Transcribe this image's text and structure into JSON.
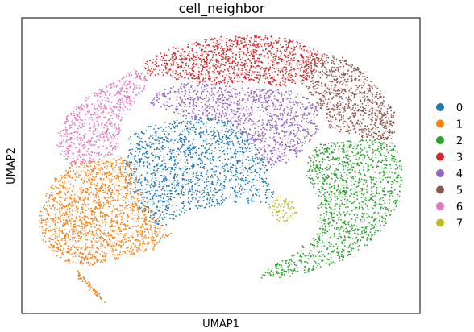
{
  "chart_data": {
    "type": "scatter",
    "title": "cell_neighbor",
    "xlabel": "UMAP1",
    "ylabel": "UMAP2",
    "xticks": [],
    "yticks": [],
    "grid": false,
    "legend_position": "right",
    "legend": [
      "0",
      "1",
      "2",
      "3",
      "4",
      "5",
      "6",
      "7"
    ],
    "series": [
      {
        "name": "0",
        "color": "#1f77b4"
      },
      {
        "name": "1",
        "color": "#ff7f0e"
      },
      {
        "name": "2",
        "color": "#2ca02c"
      },
      {
        "name": "3",
        "color": "#d62728"
      },
      {
        "name": "4",
        "color": "#9467bd"
      },
      {
        "name": "5",
        "color": "#8c564b"
      },
      {
        "name": "6",
        "color": "#e377c2"
      },
      {
        "name": "7",
        "color": "#bcbd22"
      }
    ]
  }
}
